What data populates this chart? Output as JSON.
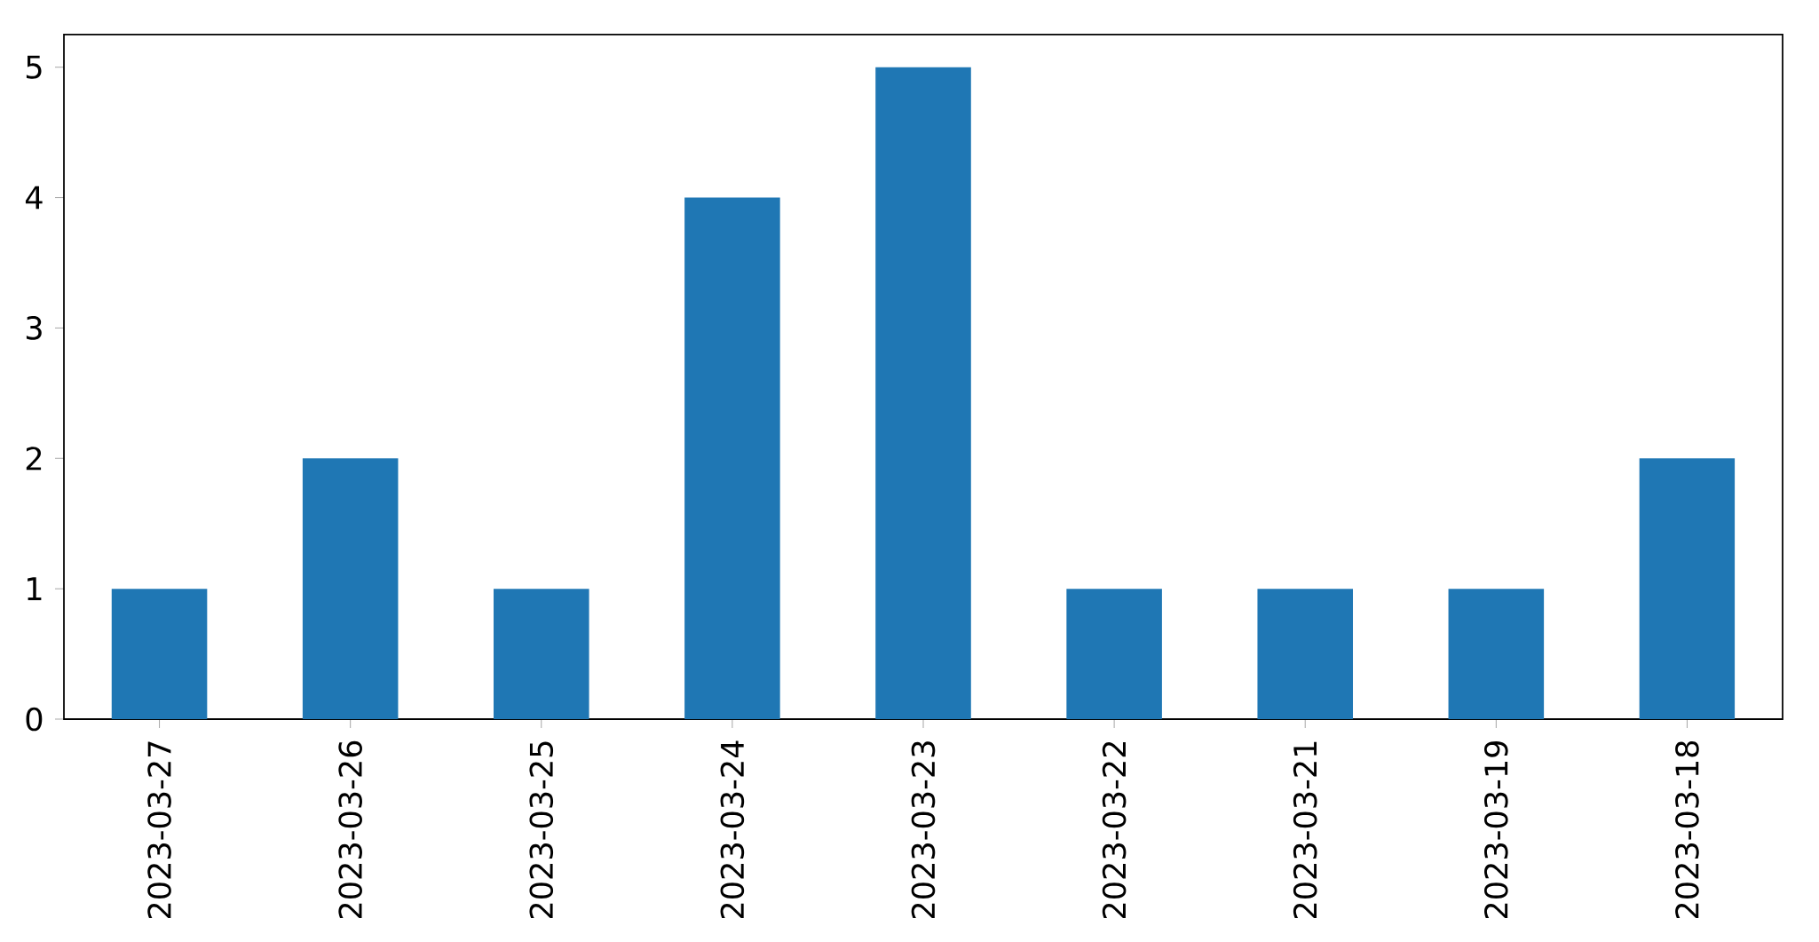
{
  "chart_data": {
    "type": "bar",
    "categories": [
      "2023-03-27",
      "2023-03-26",
      "2023-03-25",
      "2023-03-24",
      "2023-03-23",
      "2023-03-22",
      "2023-03-21",
      "2023-03-19",
      "2023-03-18"
    ],
    "values": [
      1,
      2,
      1,
      4,
      5,
      1,
      1,
      1,
      2
    ],
    "color": "#1f77b4",
    "ylim": [
      0,
      5.25
    ],
    "yticks": [
      0,
      1,
      2,
      3,
      4,
      5
    ],
    "grid": false
  }
}
